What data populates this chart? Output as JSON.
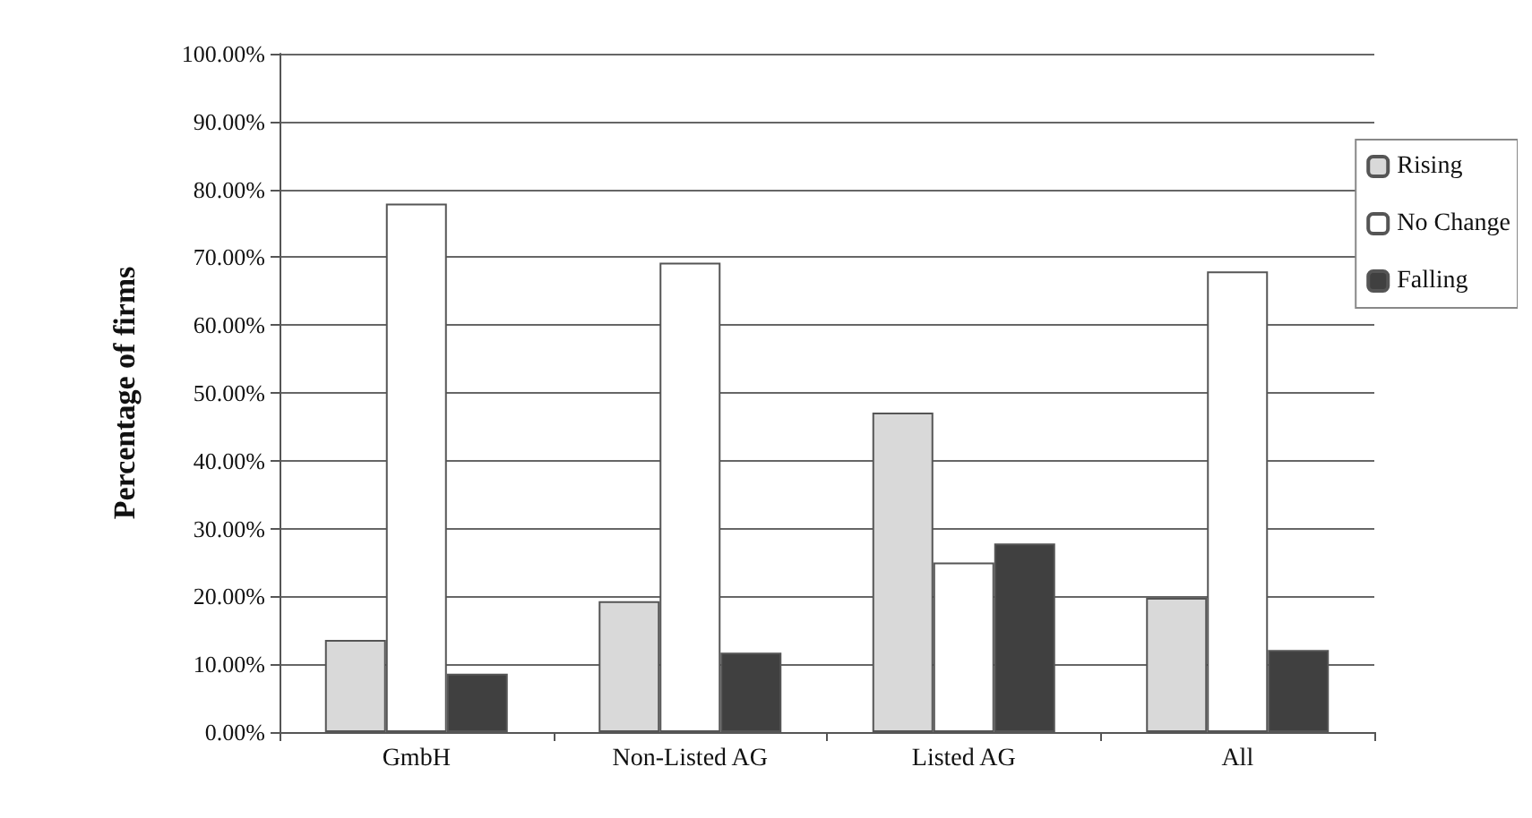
{
  "chart_data": {
    "type": "bar",
    "ylabel": "Percentage of firms",
    "categories": [
      "GmbH",
      "Non-Listed AG",
      "Listed AG",
      "All"
    ],
    "series": [
      {
        "name": "Rising",
        "color": "#d9d9d9",
        "values": [
          13.6,
          19.3,
          47.1,
          19.8
        ]
      },
      {
        "name": "No Change",
        "color": "#ffffff",
        "values": [
          77.9,
          69.2,
          25,
          67.9
        ]
      },
      {
        "name": "Falling",
        "color": "#404040",
        "values": [
          8.6,
          11.7,
          27.8,
          12.1
        ]
      }
    ],
    "ylim": [
      0,
      100
    ],
    "yticks": [
      {
        "value": 0,
        "label": "0.00%"
      },
      {
        "value": 10,
        "label": "10.00%"
      },
      {
        "value": 20,
        "label": "20.00%"
      },
      {
        "value": 30,
        "label": "30.00%"
      },
      {
        "value": 40,
        "label": "40.00%"
      },
      {
        "value": 50,
        "label": "50.00%"
      },
      {
        "value": 60,
        "label": "60.00%"
      },
      {
        "value": 70,
        "label": "70.00%"
      },
      {
        "value": 80,
        "label": "80.00%"
      },
      {
        "value": 90,
        "label": "90.00%"
      },
      {
        "value": 100,
        "label": "100.00%"
      }
    ],
    "grid": "y",
    "legend": "top right"
  }
}
